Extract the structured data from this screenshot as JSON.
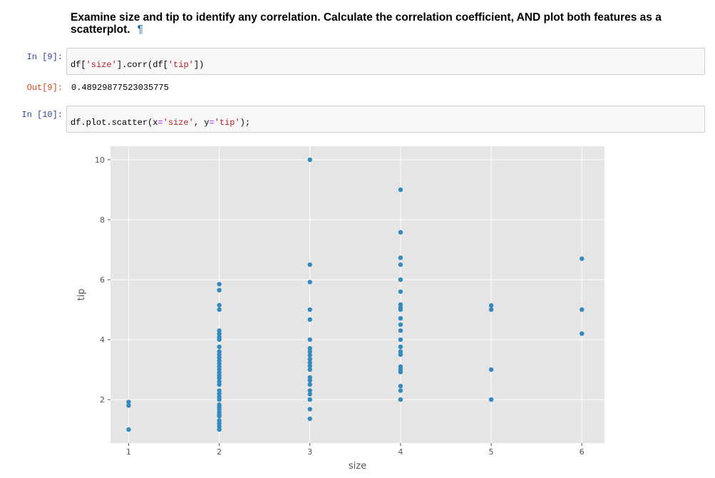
{
  "markdown": {
    "heading": "Examine size and tip to identify any correlation. Calculate the correlation coefficient, AND plot both features as a scatterplot.",
    "anchor": "¶"
  },
  "cells": [
    {
      "prompt": "In [9]:",
      "code": {
        "p1": "df[",
        "s1": "'size'",
        "p2": "].corr(df[",
        "s2": "'tip'",
        "p3": "])"
      }
    },
    {
      "prompt": "In [10]:",
      "code": {
        "p1": "df.plot.scatter(x",
        "o1": "=",
        "s1": "'size'",
        "p2": ", y",
        "o2": "=",
        "s2": "'tip'",
        "p3": ");"
      }
    }
  ],
  "output": {
    "prompt": "Out[9]:",
    "value": "0.48929877523035775"
  },
  "chart_data": {
    "type": "scatter",
    "title": "",
    "xlabel": "size",
    "ylabel": "tip",
    "xlim": [
      0.8,
      6.25
    ],
    "ylim": [
      0.55,
      10.45
    ],
    "xticks": [
      1,
      2,
      3,
      4,
      5,
      6
    ],
    "yticks": [
      2,
      4,
      6,
      8,
      10
    ],
    "grid": true,
    "colors": {
      "point": "#348ABD",
      "background": "#E5E5E5",
      "grid": "#FFFFFF"
    },
    "points": [
      {
        "x": 1,
        "y": 1.0
      },
      {
        "x": 1,
        "y": 1.8
      },
      {
        "x": 1,
        "y": 1.92
      },
      {
        "x": 2,
        "y": 1.0
      },
      {
        "x": 2,
        "y": 1.1
      },
      {
        "x": 2,
        "y": 1.2
      },
      {
        "x": 2,
        "y": 1.3
      },
      {
        "x": 2,
        "y": 1.45
      },
      {
        "x": 2,
        "y": 1.5
      },
      {
        "x": 2,
        "y": 1.58
      },
      {
        "x": 2,
        "y": 1.67
      },
      {
        "x": 2,
        "y": 1.75
      },
      {
        "x": 2,
        "y": 1.83
      },
      {
        "x": 2,
        "y": 2.0
      },
      {
        "x": 2,
        "y": 2.09
      },
      {
        "x": 2,
        "y": 2.2
      },
      {
        "x": 2,
        "y": 2.3
      },
      {
        "x": 2,
        "y": 2.5
      },
      {
        "x": 2,
        "y": 2.6
      },
      {
        "x": 2,
        "y": 2.72
      },
      {
        "x": 2,
        "y": 2.8
      },
      {
        "x": 2,
        "y": 2.9
      },
      {
        "x": 2,
        "y": 3.0
      },
      {
        "x": 2,
        "y": 3.1
      },
      {
        "x": 2,
        "y": 3.2
      },
      {
        "x": 2,
        "y": 3.3
      },
      {
        "x": 2,
        "y": 3.4
      },
      {
        "x": 2,
        "y": 3.5
      },
      {
        "x": 2,
        "y": 3.6
      },
      {
        "x": 2,
        "y": 3.76
      },
      {
        "x": 2,
        "y": 4.0
      },
      {
        "x": 2,
        "y": 4.08
      },
      {
        "x": 2,
        "y": 4.19
      },
      {
        "x": 2,
        "y": 4.3
      },
      {
        "x": 2,
        "y": 5.0
      },
      {
        "x": 2,
        "y": 5.15
      },
      {
        "x": 2,
        "y": 5.65
      },
      {
        "x": 2,
        "y": 5.85
      },
      {
        "x": 3,
        "y": 1.36
      },
      {
        "x": 3,
        "y": 1.68
      },
      {
        "x": 3,
        "y": 2.0
      },
      {
        "x": 3,
        "y": 2.18
      },
      {
        "x": 3,
        "y": 2.3
      },
      {
        "x": 3,
        "y": 2.5
      },
      {
        "x": 3,
        "y": 2.64
      },
      {
        "x": 3,
        "y": 2.74
      },
      {
        "x": 3,
        "y": 3.0
      },
      {
        "x": 3,
        "y": 3.12
      },
      {
        "x": 3,
        "y": 3.23
      },
      {
        "x": 3,
        "y": 3.35
      },
      {
        "x": 3,
        "y": 3.48
      },
      {
        "x": 3,
        "y": 3.6
      },
      {
        "x": 3,
        "y": 3.71
      },
      {
        "x": 3,
        "y": 4.0
      },
      {
        "x": 3,
        "y": 4.67
      },
      {
        "x": 3,
        "y": 5.0
      },
      {
        "x": 3,
        "y": 5.92
      },
      {
        "x": 3,
        "y": 6.5
      },
      {
        "x": 3,
        "y": 10.0
      },
      {
        "x": 4,
        "y": 2.0
      },
      {
        "x": 4,
        "y": 2.3
      },
      {
        "x": 4,
        "y": 2.45
      },
      {
        "x": 4,
        "y": 2.92
      },
      {
        "x": 4,
        "y": 3.0
      },
      {
        "x": 4,
        "y": 3.1
      },
      {
        "x": 4,
        "y": 3.5
      },
      {
        "x": 4,
        "y": 3.6
      },
      {
        "x": 4,
        "y": 3.76
      },
      {
        "x": 4,
        "y": 4.0
      },
      {
        "x": 4,
        "y": 4.3
      },
      {
        "x": 4,
        "y": 4.5
      },
      {
        "x": 4,
        "y": 4.71
      },
      {
        "x": 4,
        "y": 5.0
      },
      {
        "x": 4,
        "y": 5.07
      },
      {
        "x": 4,
        "y": 5.17
      },
      {
        "x": 4,
        "y": 5.6
      },
      {
        "x": 4,
        "y": 6.0
      },
      {
        "x": 4,
        "y": 6.5
      },
      {
        "x": 4,
        "y": 6.73
      },
      {
        "x": 4,
        "y": 7.58
      },
      {
        "x": 4,
        "y": 9.0
      },
      {
        "x": 5,
        "y": 2.0
      },
      {
        "x": 5,
        "y": 3.0
      },
      {
        "x": 5,
        "y": 5.0
      },
      {
        "x": 5,
        "y": 5.14
      },
      {
        "x": 6,
        "y": 4.2
      },
      {
        "x": 6,
        "y": 5.0
      },
      {
        "x": 6,
        "y": 6.7
      }
    ]
  }
}
